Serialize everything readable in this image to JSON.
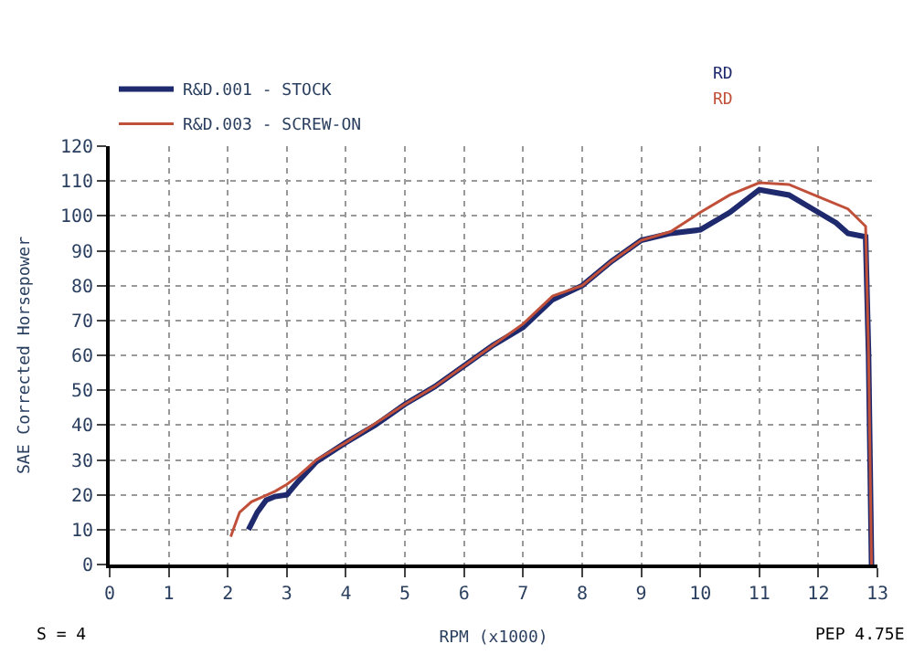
{
  "chart_data": {
    "type": "line",
    "xlabel": "RPM (x1000)",
    "ylabel": "SAE Corrected Horsepower",
    "xlim": [
      0,
      13
    ],
    "xticks": [
      0,
      1,
      2,
      3,
      4,
      5,
      6,
      7,
      8,
      9,
      10,
      11,
      12,
      13
    ],
    "ylim": [
      0,
      120
    ],
    "yticks": [
      0,
      10,
      20,
      30,
      40,
      50,
      60,
      70,
      80,
      90,
      100,
      110,
      120
    ],
    "grid": true,
    "legend": "top left",
    "marker": "none",
    "line_style": "solid",
    "annotations": [
      "RD",
      "RD",
      "S = 4",
      "PEP 4.75E"
    ],
    "series": [
      {
        "name": "R&D.001 - STOCK",
        "color": "#1f2a6e",
        "x": [
          2.35,
          2.5,
          2.65,
          2.8,
          3.0,
          3.2,
          3.5,
          4,
          4.5,
          5,
          5.5,
          6,
          6.5,
          7,
          7.5,
          8,
          8.5,
          9,
          9.5,
          10,
          10.5,
          11,
          11.5,
          12,
          12.3,
          12.5,
          12.8,
          12.85,
          12.9
        ],
        "values": [
          10,
          15,
          18.5,
          19.5,
          20,
          24,
          29.5,
          35,
          40,
          46,
          51,
          57,
          63,
          68,
          76,
          80,
          87,
          93,
          95,
          96,
          101,
          107.5,
          106,
          101,
          98,
          95,
          94,
          60,
          0
        ]
      },
      {
        "name": "R&D.003 - SCREW-ON",
        "color": "#c0503a",
        "x": [
          2.05,
          2.2,
          2.4,
          2.6,
          2.8,
          3.0,
          3.2,
          3.5,
          4,
          4.5,
          5,
          5.5,
          6,
          6.5,
          7,
          7.5,
          8,
          8.5,
          9,
          9.5,
          10,
          10.5,
          11,
          11.5,
          12,
          12.5,
          12.8,
          12.85,
          12.9
        ],
        "values": [
          8,
          15,
          18,
          19.5,
          21,
          23,
          25.5,
          30,
          35,
          40.5,
          46,
          51,
          57,
          63,
          69,
          77,
          80,
          87,
          93,
          95.5,
          101,
          106,
          109.5,
          109,
          105.5,
          102,
          97,
          60,
          0
        ]
      }
    ]
  }
}
